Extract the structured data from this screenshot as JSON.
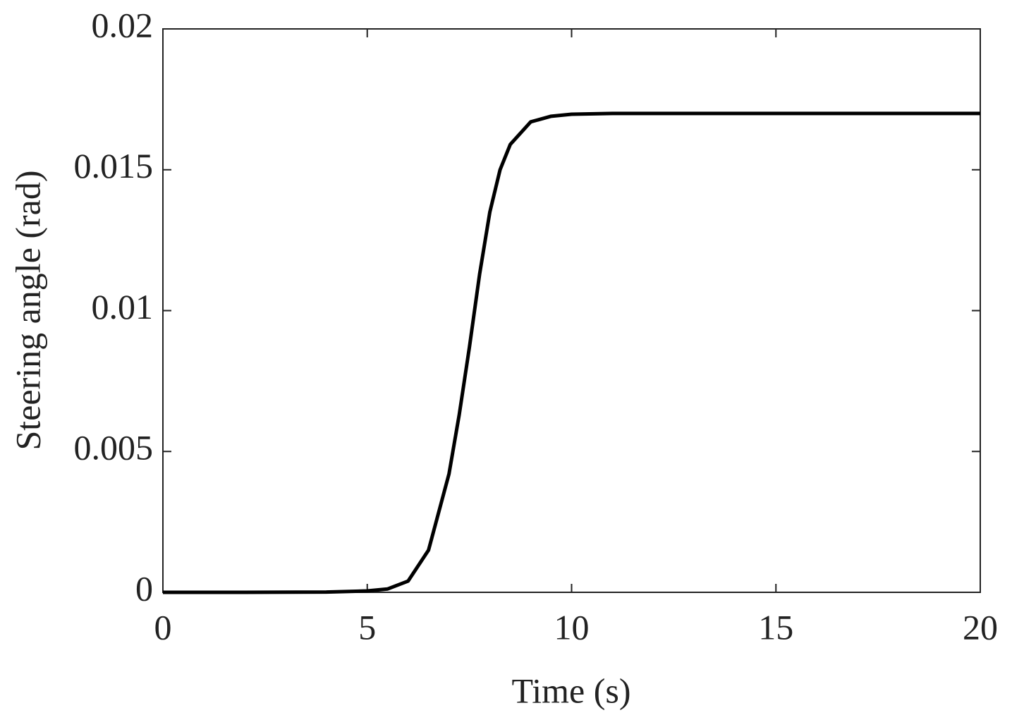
{
  "chart_data": {
    "type": "line",
    "xlabel": "Time (s)",
    "ylabel": "Steering angle (rad)",
    "x": [
      0,
      2,
      4,
      5,
      5.5,
      6,
      6.5,
      7,
      7.25,
      7.5,
      7.75,
      8,
      8.25,
      8.5,
      9,
      9.5,
      10,
      11,
      15,
      20
    ],
    "series": [
      {
        "name": "Steering angle",
        "color": "#000000",
        "values": [
          0,
          0,
          1e-05,
          5e-05,
          0.00012,
          0.0004,
          0.0015,
          0.0042,
          0.0063,
          0.0087,
          0.0113,
          0.0135,
          0.015,
          0.0159,
          0.0167,
          0.0169,
          0.01697,
          0.017,
          0.017,
          0.017
        ]
      }
    ],
    "xlim": [
      0,
      20
    ],
    "xticks": [
      0,
      5,
      10,
      15,
      20
    ],
    "ylim": [
      0,
      0.02
    ],
    "yticks": [
      0,
      0.005,
      0.01,
      0.015,
      0.02
    ],
    "grid": false
  }
}
